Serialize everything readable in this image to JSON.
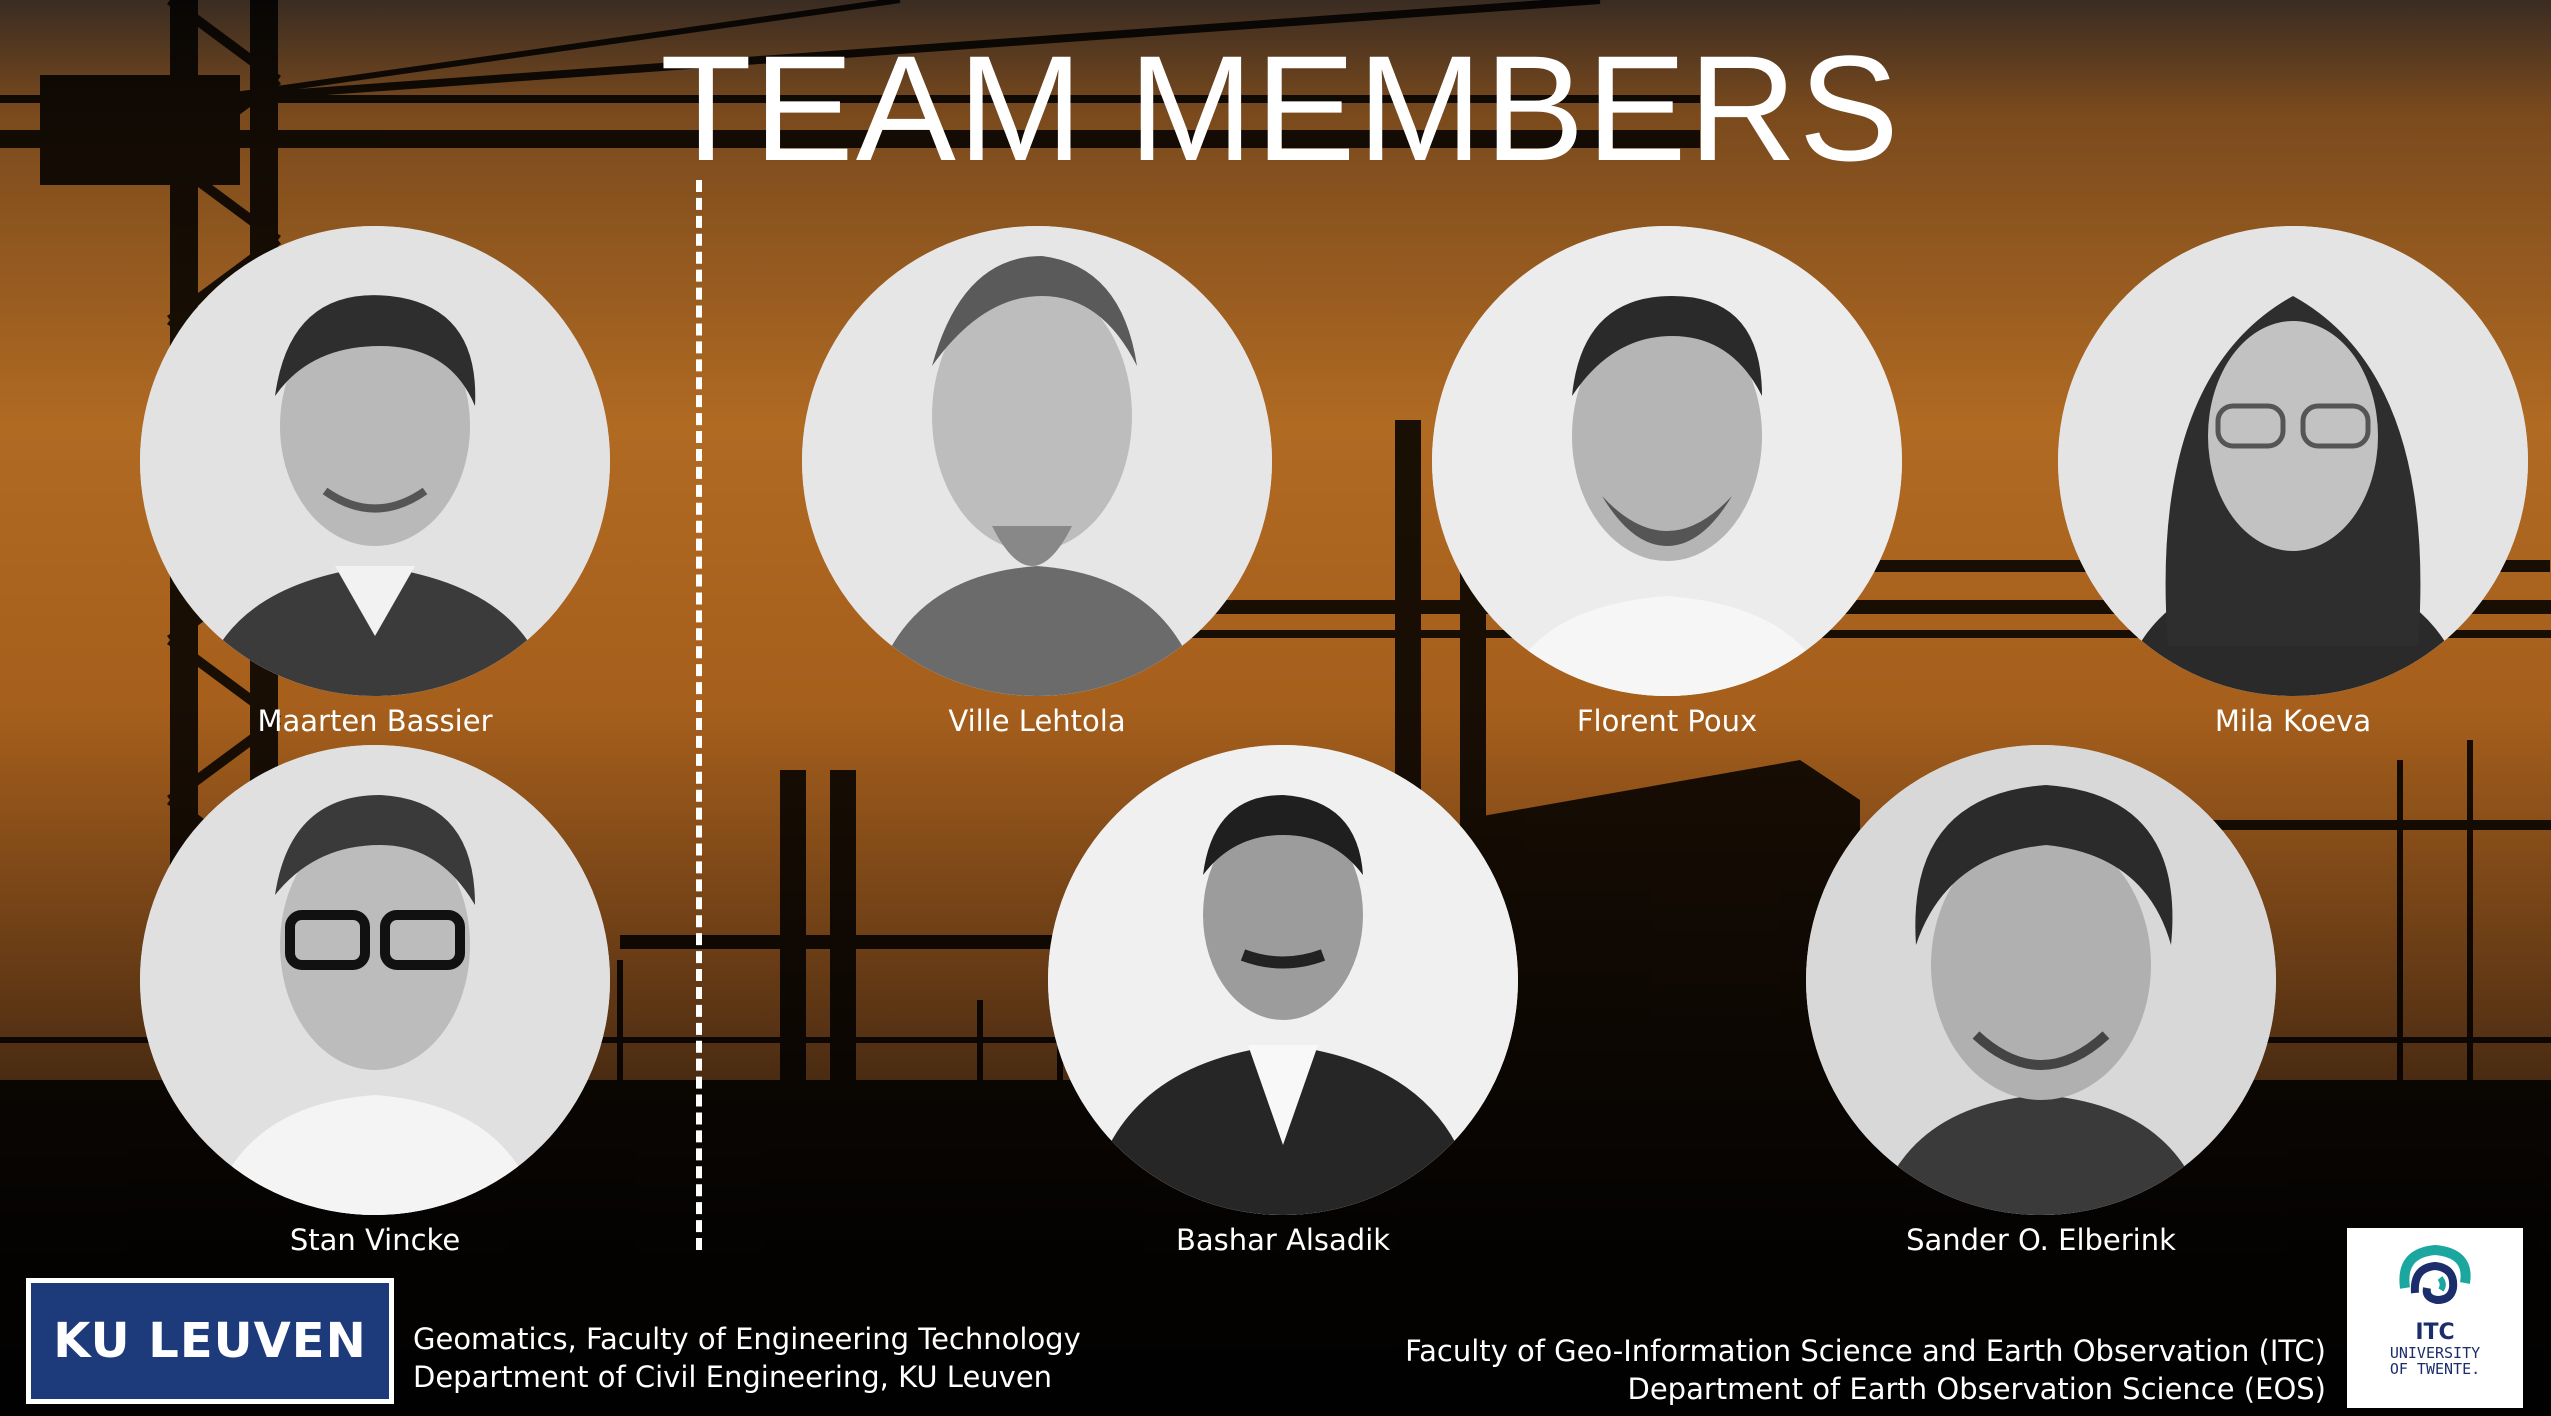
{
  "title": "TEAM MEMBERS",
  "members": [
    {
      "name": "Maarten Bassier"
    },
    {
      "name": "Ville Lehtola"
    },
    {
      "name": "Florent Poux"
    },
    {
      "name": "Mila Koeva"
    },
    {
      "name": "Stan Vincke"
    },
    {
      "name": "Bashar Alsadik"
    },
    {
      "name": "Sander O. Elberink"
    }
  ],
  "footer": {
    "ku_logo": "KU LEUVEN",
    "left_line1": "Geomatics, Faculty of Engineering Technology",
    "left_line2": "Department of Civil Engineering, KU Leuven",
    "right_line1": "Faculty of Geo-Information Science and Earth Observation (ITC)",
    "right_line2": "Department of Earth Observation Science (EOS)",
    "itc_logo": "ITC",
    "itc_sub1": "UNIVERSITY",
    "itc_sub2": "OF TWENTE."
  },
  "colors": {
    "ku_blue": "#1d3a7a",
    "itc_blue": "#1b2d6b",
    "itc_teal": "#1ca6a0"
  }
}
